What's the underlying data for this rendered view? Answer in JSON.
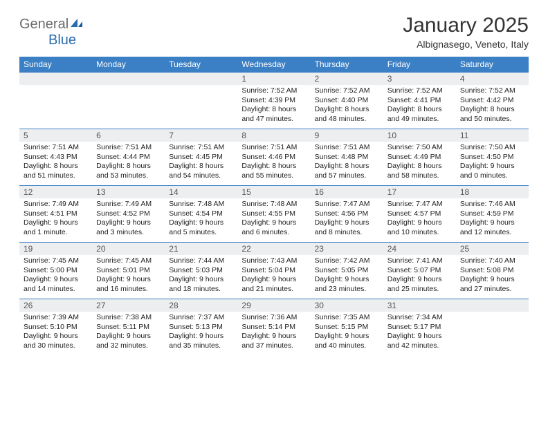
{
  "brand": {
    "text1": "General",
    "text2": "Blue"
  },
  "title": "January 2025",
  "location": "Albignasego, Veneto, Italy",
  "colors": {
    "header_bg": "#3b7fc4",
    "header_text": "#ffffff",
    "daynum_bg": "#eceef0",
    "border": "#3b7fc4",
    "logo_gray": "#6b6b6b",
    "logo_blue": "#2b6cb0"
  },
  "weekdays": [
    "Sunday",
    "Monday",
    "Tuesday",
    "Wednesday",
    "Thursday",
    "Friday",
    "Saturday"
  ],
  "weeks": [
    [
      {
        "n": "",
        "sr": "",
        "ss": "",
        "dl": ""
      },
      {
        "n": "",
        "sr": "",
        "ss": "",
        "dl": ""
      },
      {
        "n": "",
        "sr": "",
        "ss": "",
        "dl": ""
      },
      {
        "n": "1",
        "sr": "Sunrise: 7:52 AM",
        "ss": "Sunset: 4:39 PM",
        "dl": "Daylight: 8 hours and 47 minutes."
      },
      {
        "n": "2",
        "sr": "Sunrise: 7:52 AM",
        "ss": "Sunset: 4:40 PM",
        "dl": "Daylight: 8 hours and 48 minutes."
      },
      {
        "n": "3",
        "sr": "Sunrise: 7:52 AM",
        "ss": "Sunset: 4:41 PM",
        "dl": "Daylight: 8 hours and 49 minutes."
      },
      {
        "n": "4",
        "sr": "Sunrise: 7:52 AM",
        "ss": "Sunset: 4:42 PM",
        "dl": "Daylight: 8 hours and 50 minutes."
      }
    ],
    [
      {
        "n": "5",
        "sr": "Sunrise: 7:51 AM",
        "ss": "Sunset: 4:43 PM",
        "dl": "Daylight: 8 hours and 51 minutes."
      },
      {
        "n": "6",
        "sr": "Sunrise: 7:51 AM",
        "ss": "Sunset: 4:44 PM",
        "dl": "Daylight: 8 hours and 53 minutes."
      },
      {
        "n": "7",
        "sr": "Sunrise: 7:51 AM",
        "ss": "Sunset: 4:45 PM",
        "dl": "Daylight: 8 hours and 54 minutes."
      },
      {
        "n": "8",
        "sr": "Sunrise: 7:51 AM",
        "ss": "Sunset: 4:46 PM",
        "dl": "Daylight: 8 hours and 55 minutes."
      },
      {
        "n": "9",
        "sr": "Sunrise: 7:51 AM",
        "ss": "Sunset: 4:48 PM",
        "dl": "Daylight: 8 hours and 57 minutes."
      },
      {
        "n": "10",
        "sr": "Sunrise: 7:50 AM",
        "ss": "Sunset: 4:49 PM",
        "dl": "Daylight: 8 hours and 58 minutes."
      },
      {
        "n": "11",
        "sr": "Sunrise: 7:50 AM",
        "ss": "Sunset: 4:50 PM",
        "dl": "Daylight: 9 hours and 0 minutes."
      }
    ],
    [
      {
        "n": "12",
        "sr": "Sunrise: 7:49 AM",
        "ss": "Sunset: 4:51 PM",
        "dl": "Daylight: 9 hours and 1 minute."
      },
      {
        "n": "13",
        "sr": "Sunrise: 7:49 AM",
        "ss": "Sunset: 4:52 PM",
        "dl": "Daylight: 9 hours and 3 minutes."
      },
      {
        "n": "14",
        "sr": "Sunrise: 7:48 AM",
        "ss": "Sunset: 4:54 PM",
        "dl": "Daylight: 9 hours and 5 minutes."
      },
      {
        "n": "15",
        "sr": "Sunrise: 7:48 AM",
        "ss": "Sunset: 4:55 PM",
        "dl": "Daylight: 9 hours and 6 minutes."
      },
      {
        "n": "16",
        "sr": "Sunrise: 7:47 AM",
        "ss": "Sunset: 4:56 PM",
        "dl": "Daylight: 9 hours and 8 minutes."
      },
      {
        "n": "17",
        "sr": "Sunrise: 7:47 AM",
        "ss": "Sunset: 4:57 PM",
        "dl": "Daylight: 9 hours and 10 minutes."
      },
      {
        "n": "18",
        "sr": "Sunrise: 7:46 AM",
        "ss": "Sunset: 4:59 PM",
        "dl": "Daylight: 9 hours and 12 minutes."
      }
    ],
    [
      {
        "n": "19",
        "sr": "Sunrise: 7:45 AM",
        "ss": "Sunset: 5:00 PM",
        "dl": "Daylight: 9 hours and 14 minutes."
      },
      {
        "n": "20",
        "sr": "Sunrise: 7:45 AM",
        "ss": "Sunset: 5:01 PM",
        "dl": "Daylight: 9 hours and 16 minutes."
      },
      {
        "n": "21",
        "sr": "Sunrise: 7:44 AM",
        "ss": "Sunset: 5:03 PM",
        "dl": "Daylight: 9 hours and 18 minutes."
      },
      {
        "n": "22",
        "sr": "Sunrise: 7:43 AM",
        "ss": "Sunset: 5:04 PM",
        "dl": "Daylight: 9 hours and 21 minutes."
      },
      {
        "n": "23",
        "sr": "Sunrise: 7:42 AM",
        "ss": "Sunset: 5:05 PM",
        "dl": "Daylight: 9 hours and 23 minutes."
      },
      {
        "n": "24",
        "sr": "Sunrise: 7:41 AM",
        "ss": "Sunset: 5:07 PM",
        "dl": "Daylight: 9 hours and 25 minutes."
      },
      {
        "n": "25",
        "sr": "Sunrise: 7:40 AM",
        "ss": "Sunset: 5:08 PM",
        "dl": "Daylight: 9 hours and 27 minutes."
      }
    ],
    [
      {
        "n": "26",
        "sr": "Sunrise: 7:39 AM",
        "ss": "Sunset: 5:10 PM",
        "dl": "Daylight: 9 hours and 30 minutes."
      },
      {
        "n": "27",
        "sr": "Sunrise: 7:38 AM",
        "ss": "Sunset: 5:11 PM",
        "dl": "Daylight: 9 hours and 32 minutes."
      },
      {
        "n": "28",
        "sr": "Sunrise: 7:37 AM",
        "ss": "Sunset: 5:13 PM",
        "dl": "Daylight: 9 hours and 35 minutes."
      },
      {
        "n": "29",
        "sr": "Sunrise: 7:36 AM",
        "ss": "Sunset: 5:14 PM",
        "dl": "Daylight: 9 hours and 37 minutes."
      },
      {
        "n": "30",
        "sr": "Sunrise: 7:35 AM",
        "ss": "Sunset: 5:15 PM",
        "dl": "Daylight: 9 hours and 40 minutes."
      },
      {
        "n": "31",
        "sr": "Sunrise: 7:34 AM",
        "ss": "Sunset: 5:17 PM",
        "dl": "Daylight: 9 hours and 42 minutes."
      },
      {
        "n": "",
        "sr": "",
        "ss": "",
        "dl": ""
      }
    ]
  ]
}
